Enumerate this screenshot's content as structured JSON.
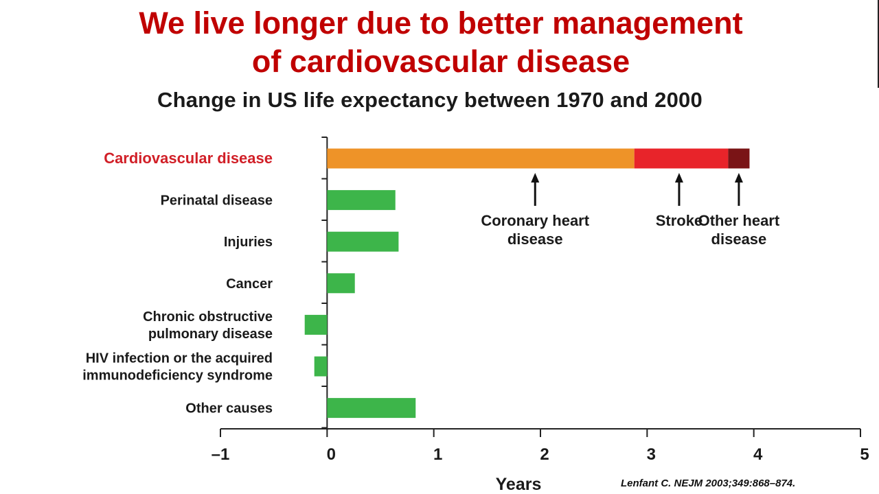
{
  "slide": {
    "title_line1": "We live longer due to better management",
    "title_line2": "of cardiovascular disease",
    "citation": "Lenfant C. NEJM 2003;349:868–874.",
    "title_color": "#c00000"
  },
  "chart_data": {
    "type": "bar",
    "orientation": "horizontal",
    "title": "Change in US life expectancy between 1970 and 2000",
    "xlabel": "Years",
    "ylabel": "",
    "xlim": [
      -1,
      5
    ],
    "xticks": [
      -1,
      0,
      1,
      2,
      3,
      4,
      5
    ],
    "xtick_labels": [
      "–1",
      "0",
      "1",
      "2",
      "3",
      "4",
      "5"
    ],
    "grid": false,
    "categories": [
      {
        "label": [
          "Cardiovascular disease"
        ],
        "highlight": true
      },
      {
        "label": [
          "Perinatal disease"
        ]
      },
      {
        "label": [
          "Injuries"
        ]
      },
      {
        "label": [
          "Cancer"
        ]
      },
      {
        "label": [
          "Chronic obstructive",
          "pulmonary disease"
        ]
      },
      {
        "label": [
          "HIV infection or the acquired",
          "immunodeficiency syndrome"
        ]
      },
      {
        "label": [
          "Other causes"
        ]
      }
    ],
    "stacked_bar": {
      "category_index": 0,
      "segments": [
        {
          "name": "Coronary heart disease",
          "start": 0,
          "end": 2.88,
          "color": "#ee9328",
          "annotation": [
            "Coronary heart",
            "disease"
          ],
          "annotation_x": 1.95
        },
        {
          "name": "Stroke",
          "start": 2.88,
          "end": 3.76,
          "color": "#e8242a",
          "annotation": [
            "Stroke"
          ],
          "annotation_x": 3.3
        },
        {
          "name": "Other heart disease",
          "start": 3.76,
          "end": 3.96,
          "color": "#7a1416",
          "annotation": [
            "Other heart",
            "disease"
          ],
          "annotation_x": 3.86
        }
      ]
    },
    "values": [
      {
        "category_index": 1,
        "value": 0.64
      },
      {
        "category_index": 2,
        "value": 0.67
      },
      {
        "category_index": 3,
        "value": 0.26
      },
      {
        "category_index": 4,
        "value": -0.21
      },
      {
        "category_index": 5,
        "value": -0.12
      },
      {
        "category_index": 6,
        "value": 0.83
      }
    ],
    "bar_color": "#3db54a",
    "highlight_label_color": "#d11f27"
  }
}
